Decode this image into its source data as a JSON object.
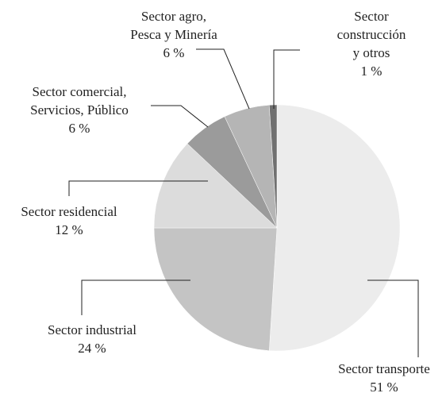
{
  "chart_data": {
    "type": "pie",
    "categories": [
      "Sector transporte",
      "Sector industrial",
      "Sector residencial",
      "Sector comercial,\nServicios, Público",
      "Sector agro,\nPesca y Minería",
      "Sector\nconstrucción\ny otros"
    ],
    "values": [
      51,
      24,
      12,
      6,
      6,
      1
    ],
    "value_labels": [
      "51 %",
      "24 %",
      "12 %",
      "6 %",
      "6 %",
      "1 %"
    ],
    "colors": [
      "#ececec",
      "#c4c4c4",
      "#dcdcdc",
      "#9b9b9b",
      "#b5b5b5",
      "#707070"
    ]
  }
}
